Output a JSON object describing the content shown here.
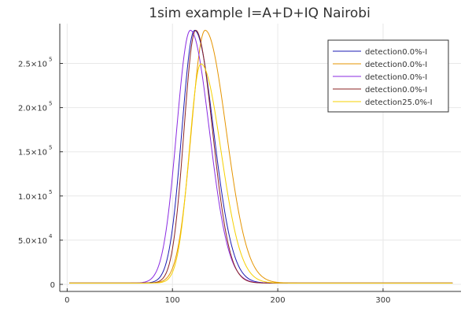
{
  "chart_data": {
    "type": "line",
    "title": "1sim example I=A+D+IQ Nairobi",
    "xlabel": "",
    "ylabel": "",
    "xlim": [
      -7,
      374
    ],
    "ylim": [
      -8000,
      295000
    ],
    "grid": true,
    "legend_position": "top-right",
    "x_ticks": [
      {
        "value": 0,
        "label": "0"
      },
      {
        "value": 100,
        "label": "100"
      },
      {
        "value": 200,
        "label": "200"
      },
      {
        "value": 300,
        "label": "300"
      }
    ],
    "y_ticks": [
      {
        "value": 0,
        "mantissa": "0",
        "exp": ""
      },
      {
        "value": 50000,
        "mantissa": "5.0×10",
        "exp": "4"
      },
      {
        "value": 100000,
        "mantissa": "1.0×10",
        "exp": "5"
      },
      {
        "value": 150000,
        "mantissa": "1.5×10",
        "exp": "5"
      },
      {
        "value": 200000,
        "mantissa": "2.0×10",
        "exp": "5"
      },
      {
        "value": 250000,
        "mantissa": "2.5×10",
        "exp": "5"
      }
    ],
    "series": [
      {
        "name": "detection0.0%-I",
        "color": "#1b1bb3",
        "peak_x": 121,
        "peak_y": 286000,
        "sigma_left": 12,
        "sigma_right": 18
      },
      {
        "name": "detection0.0%-I",
        "color": "#e59400",
        "peak_x": 131,
        "peak_y": 286000,
        "sigma_left": 13,
        "sigma_right": 20
      },
      {
        "name": "detection0.0%-I",
        "color": "#8a2be2",
        "peak_x": 117,
        "peak_y": 286000,
        "sigma_left": 13,
        "sigma_right": 18
      },
      {
        "name": "detection0.0%-I",
        "color": "#8b2323",
        "peak_x": 122,
        "peak_y": 286000,
        "sigma_left": 11,
        "sigma_right": 16
      },
      {
        "name": "detection25.0%-I",
        "color": "#f5d000",
        "peak_x": 127,
        "peak_y": 248000,
        "sigma_left": 11,
        "sigma_right": 19
      }
    ]
  }
}
